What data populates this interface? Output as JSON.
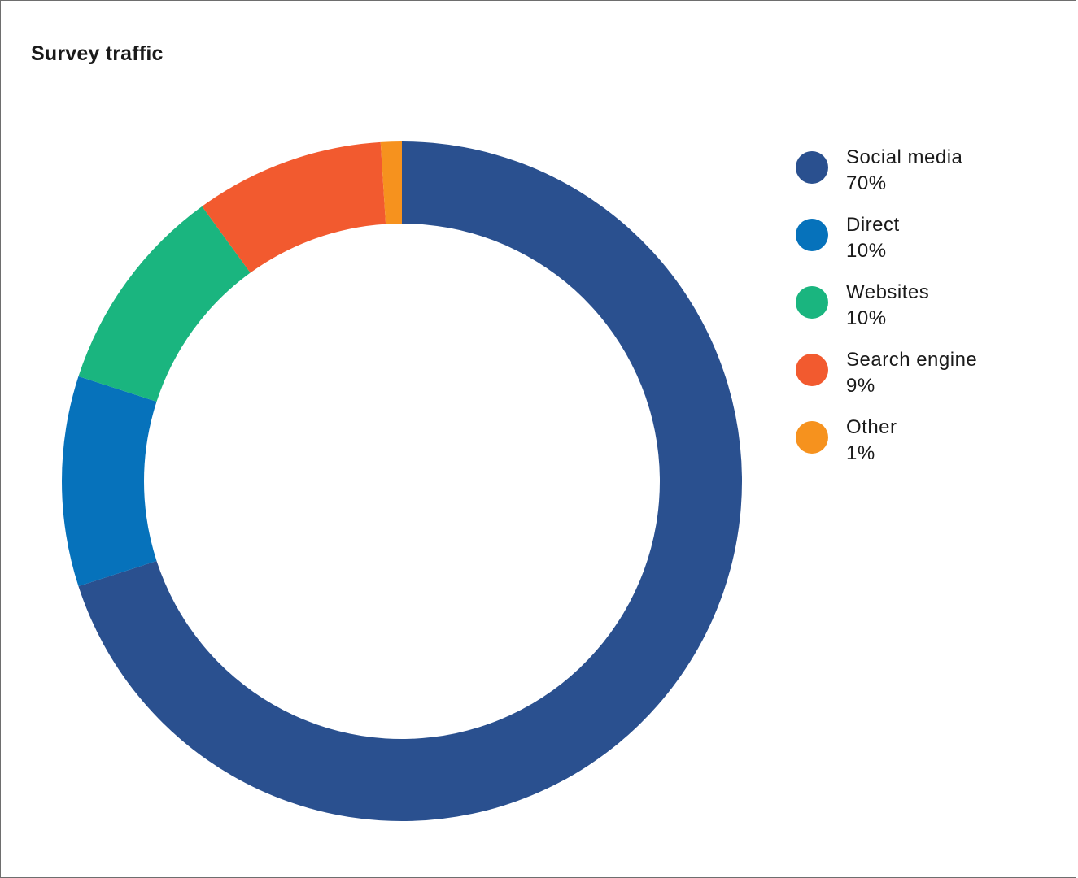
{
  "chart_data": {
    "type": "pie",
    "title": "Survey traffic",
    "categories": [
      "Social media",
      "Direct",
      "Websites",
      "Search engine",
      "Other"
    ],
    "values": [
      70,
      10,
      10,
      9,
      1
    ],
    "value_labels": [
      "70%",
      "10%",
      "10%",
      "9%",
      "1%"
    ],
    "colors": [
      "#2a508f",
      "#0672bb",
      "#1ab57f",
      "#f25a2f",
      "#f6921e"
    ],
    "donut": true,
    "legend_position": "right"
  }
}
